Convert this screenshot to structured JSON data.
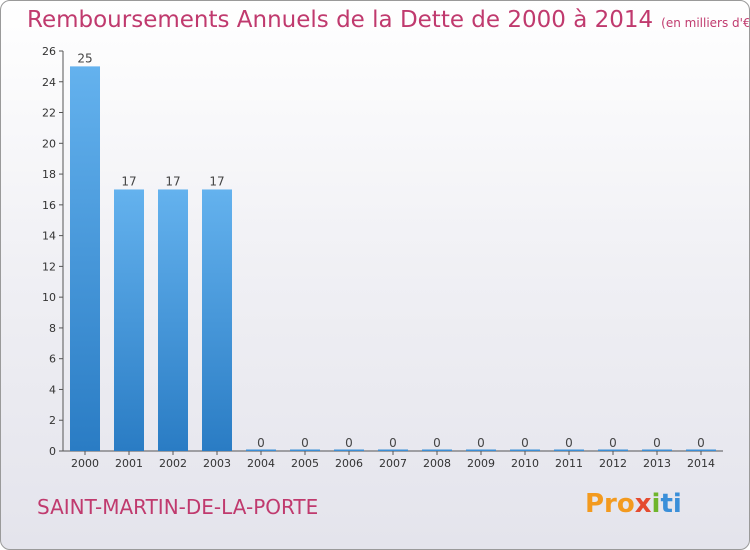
{
  "chart_data": {
    "type": "bar",
    "title": "Remboursements Annuels de la Dette de 2000 à 2014",
    "subtitle": "(en milliers d'€)",
    "categories": [
      "2000",
      "2001",
      "2002",
      "2003",
      "2004",
      "2005",
      "2006",
      "2007",
      "2008",
      "2009",
      "2010",
      "2011",
      "2012",
      "2013",
      "2014"
    ],
    "values": [
      25,
      17,
      17,
      17,
      0,
      0,
      0,
      0,
      0,
      0,
      0,
      0,
      0,
      0,
      0
    ],
    "ylim": [
      0,
      26
    ],
    "yticks": [
      0,
      2,
      4,
      6,
      8,
      10,
      12,
      14,
      16,
      18,
      20,
      22,
      24,
      26
    ],
    "grid": false,
    "bar_color": "#3d8fd6"
  },
  "commune": "SAINT-MARTIN-DE-LA-PORTE",
  "brand": {
    "part1": "Pro",
    "part2": "x",
    "part3": "i",
    "part4": "ti"
  }
}
